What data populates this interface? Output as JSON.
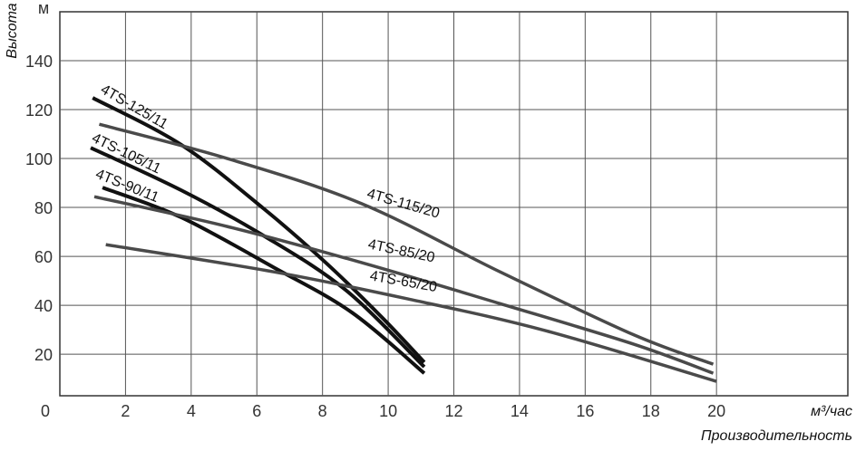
{
  "chart_data": {
    "type": "line",
    "y_label": "Высота",
    "y_unit": "м",
    "x_unit": "м³/час",
    "x_label": "Производительность",
    "origin_label": "0",
    "xlim": [
      0,
      24
    ],
    "ylim": [
      3,
      160
    ],
    "xticks": [
      2,
      4,
      6,
      8,
      10,
      12,
      14,
      16,
      18,
      20
    ],
    "yticks": [
      20,
      40,
      60,
      80,
      100,
      120,
      140
    ],
    "grid": true,
    "series": [
      {
        "name": "4TS-125/11",
        "color": "#111111",
        "x": [
          1.0,
          3.7,
          6.2,
          8.1,
          9.8,
          11.1
        ],
        "values": [
          124.8,
          105.6,
          79.6,
          57.4,
          35.2,
          16.7
        ]
      },
      {
        "name": "4TS-105/11",
        "color": "#111111",
        "x": [
          0.94,
          3.7,
          6.2,
          8.7,
          11.1
        ],
        "values": [
          104.4,
          87,
          68.5,
          46.3,
          14.8
        ]
      },
      {
        "name": "4TS-90/11",
        "color": "#111111",
        "x": [
          1.3,
          3.7,
          6.5,
          8.9,
          11.1
        ],
        "values": [
          88.1,
          75.9,
          55.6,
          37,
          12.2
        ]
      },
      {
        "name": "4TS-115/20",
        "color": "#4a4a4a",
        "x": [
          1.2,
          5.1,
          9.2,
          13.4,
          17.5,
          19.9
        ],
        "values": [
          114,
          100,
          81.5,
          53.7,
          27.8,
          15.9
        ]
      },
      {
        "name": "4TS-85/20",
        "color": "#4a4a4a",
        "x": [
          1.05,
          5.1,
          9.2,
          13.4,
          17.5,
          19.9
        ],
        "values": [
          84.4,
          72.2,
          57.4,
          40.7,
          24,
          12.2
        ]
      },
      {
        "name": "4TS-65/20",
        "color": "#4a4a4a",
        "x": [
          1.4,
          6.5,
          10.6,
          14.8,
          20
        ],
        "values": [
          64.8,
          53.7,
          42.6,
          29.6,
          8.9
        ]
      }
    ]
  }
}
